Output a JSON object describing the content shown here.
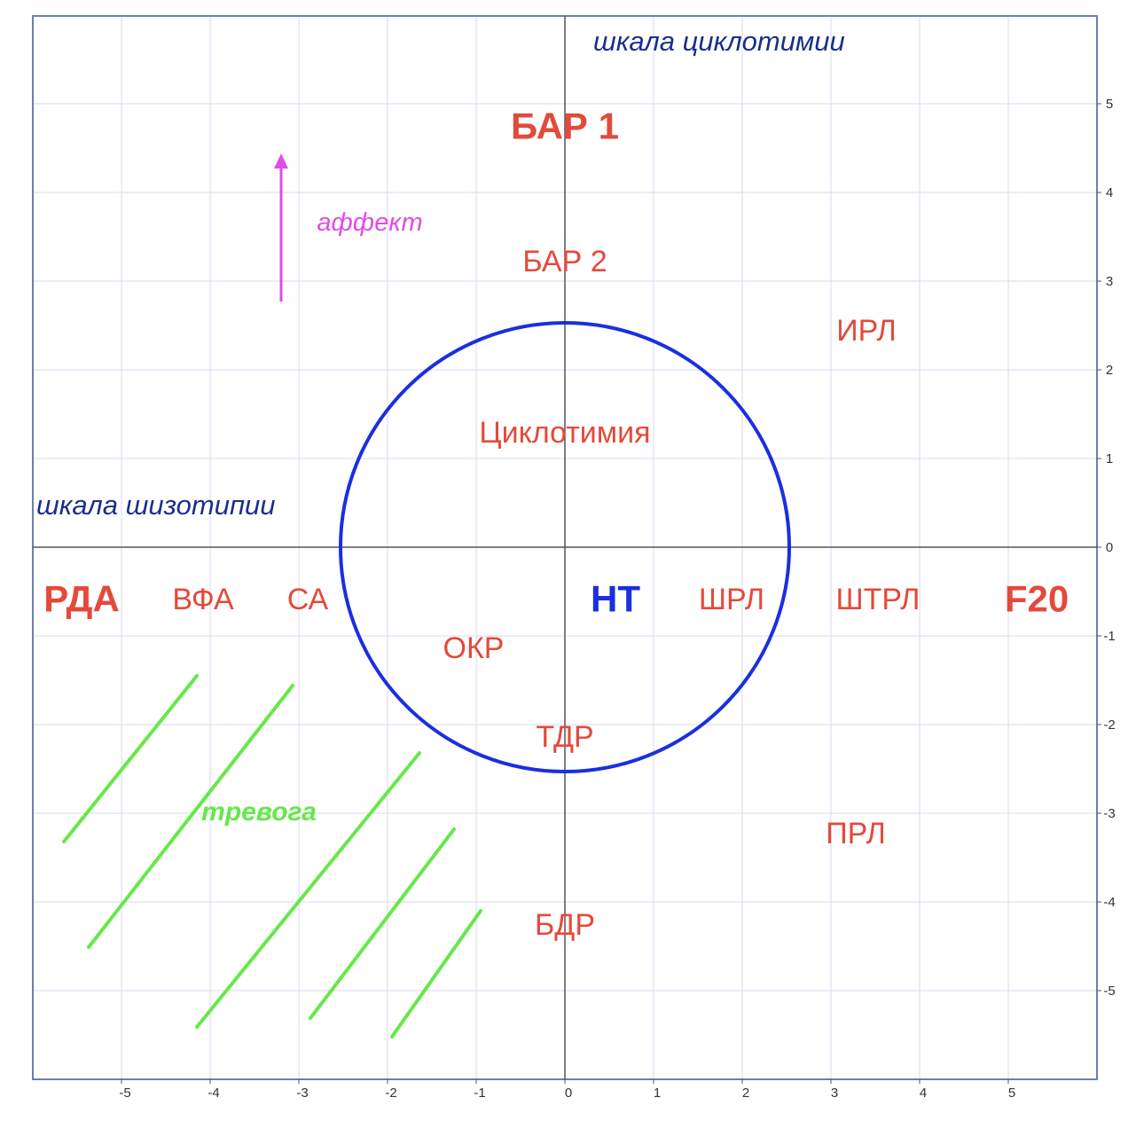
{
  "chart_data": {
    "type": "scatter",
    "xlim": [
      -6,
      6
    ],
    "ylim": [
      -6,
      6
    ],
    "grid": true,
    "x_ticks": [
      -5,
      -4,
      -3,
      -2,
      -1,
      0,
      1,
      2,
      3,
      4,
      5
    ],
    "y_ticks": [
      -5,
      -4,
      -3,
      -2,
      -1,
      0,
      1,
      2,
      3,
      4,
      5
    ],
    "x_tick_labels": [
      "-5",
      "-4",
      "-3",
      "-2",
      "-1",
      "0",
      "1",
      "2",
      "3",
      "4",
      "5"
    ],
    "y_tick_labels": [
      "-5",
      "-4",
      "-3",
      "-2",
      "-1",
      "0",
      "1",
      "2",
      "3",
      "4",
      "5"
    ],
    "axis_titles": [
      {
        "key": "schizo_axis",
        "text": "шкала шизотипии",
        "x": -5.96,
        "y": 0.37
      },
      {
        "key": "cyclo_axis",
        "text": "шкала циклотимии",
        "x": 0.32,
        "y": 5.6
      }
    ],
    "points": [
      {
        "key": "bar1",
        "label": "БАР 1",
        "x": 0.0,
        "y": 4.75,
        "bold": true,
        "size": "large"
      },
      {
        "key": "bar2",
        "label": "БАР 2",
        "x": 0.0,
        "y": 3.23,
        "bold": false,
        "size": "normal"
      },
      {
        "key": "irl",
        "label": "ИРЛ",
        "x": 3.4,
        "y": 2.45,
        "bold": false,
        "size": "normal"
      },
      {
        "key": "cyclothymia",
        "label": "Циклотимия",
        "x": 0.0,
        "y": 1.3,
        "bold": false,
        "size": "normal"
      },
      {
        "key": "rda",
        "label": "РДА",
        "x": -5.45,
        "y": -0.58,
        "bold": true,
        "size": "large"
      },
      {
        "key": "vfa",
        "label": "ВФА",
        "x": -4.08,
        "y": -0.58,
        "bold": false,
        "size": "normal"
      },
      {
        "key": "sa",
        "label": "СА",
        "x": -2.9,
        "y": -0.58,
        "bold": false,
        "size": "normal"
      },
      {
        "key": "nt",
        "label": "НТ",
        "x": 0.57,
        "y": -0.58,
        "bold": true,
        "size": "large"
      },
      {
        "key": "shrl",
        "label": "ШРЛ",
        "x": 1.88,
        "y": -0.58,
        "bold": false,
        "size": "normal"
      },
      {
        "key": "shtrl",
        "label": "ШТРЛ",
        "x": 3.53,
        "y": -0.58,
        "bold": false,
        "size": "normal"
      },
      {
        "key": "f20",
        "label": "F20",
        "x": 5.32,
        "y": -0.58,
        "bold": true,
        "size": "large"
      },
      {
        "key": "okr",
        "label": "ОКР",
        "x": -1.03,
        "y": -1.13,
        "bold": false,
        "size": "normal"
      },
      {
        "key": "tdr",
        "label": "ТДР",
        "x": 0.0,
        "y": -2.13,
        "bold": false,
        "size": "normal"
      },
      {
        "key": "prl",
        "label": "ПРЛ",
        "x": 3.28,
        "y": -3.22,
        "bold": false,
        "size": "normal"
      },
      {
        "key": "bdr",
        "label": "БДР",
        "x": 0.0,
        "y": -4.25,
        "bold": false,
        "size": "normal"
      }
    ],
    "circle": {
      "cx": 0,
      "cy": 0,
      "r": 2.53
    },
    "affect_arrow": {
      "label": "аффект",
      "from": [
        -3.2,
        2.77
      ],
      "to": [
        -3.2,
        4.4
      ],
      "label_pos": [
        -2.2,
        3.57
      ]
    },
    "anxiety_zone": {
      "label": "тревога",
      "label_pos": [
        -3.45,
        -3.08
      ],
      "stripes": [
        {
          "from": [
            -5.65,
            -3.32
          ],
          "to": [
            -4.15,
            -1.45
          ]
        },
        {
          "from": [
            -5.37,
            -4.51
          ],
          "to": [
            -3.07,
            -1.56
          ]
        },
        {
          "from": [
            -4.15,
            -5.41
          ],
          "to": [
            -1.64,
            -2.32
          ]
        },
        {
          "from": [
            -2.87,
            -5.31
          ],
          "to": [
            -1.25,
            -3.18
          ]
        },
        {
          "from": [
            -1.95,
            -5.52
          ],
          "to": [
            -0.95,
            -4.1
          ]
        }
      ]
    },
    "colors": {
      "diagnosis": "#e34a3b",
      "nt": "#1a2fe0",
      "circle": "#1a2fe0",
      "axis_title": "#1a2f8a",
      "affect": "#e04ce8",
      "anxiety": "#66e84a",
      "grid": "#dadaf0",
      "axes": "#555555"
    }
  }
}
